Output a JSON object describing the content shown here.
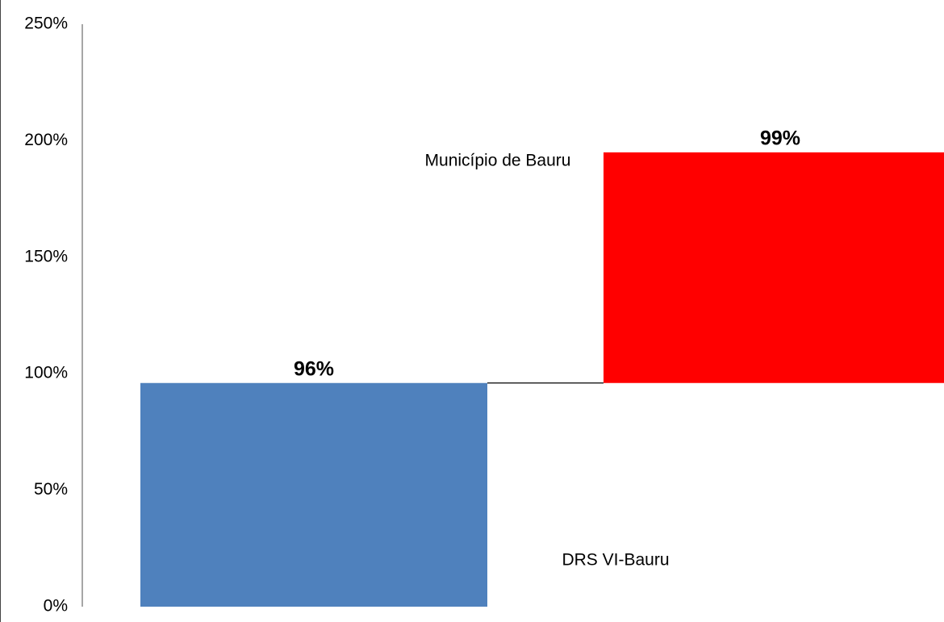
{
  "chart_data": {
    "type": "waterfall",
    "categories": [
      "DRS VI-Bauru",
      "Município de Bauru"
    ],
    "values": [
      96,
      99
    ],
    "value_labels": [
      "96%",
      "99%"
    ],
    "colors": [
      "#4f81bd",
      "#ff0000"
    ],
    "ylim": [
      0,
      250
    ],
    "yticks": [
      {
        "value": 0,
        "label": "0%"
      },
      {
        "value": 50,
        "label": "50%"
      },
      {
        "value": 100,
        "label": "100%"
      },
      {
        "value": 150,
        "label": "150%"
      },
      {
        "value": 200,
        "label": "200%"
      },
      {
        "value": 250,
        "label": "250%"
      }
    ],
    "grid": false
  }
}
